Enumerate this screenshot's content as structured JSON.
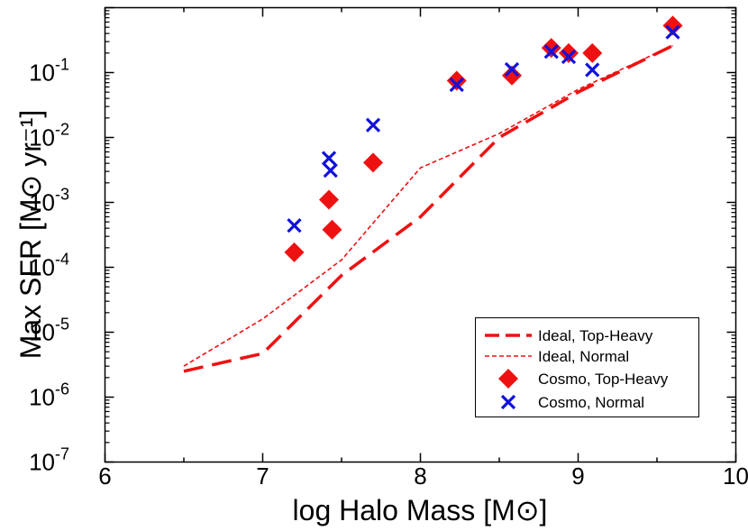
{
  "chart_data": {
    "type": "scatter",
    "xlabel": "log Halo Mass [M⊙]",
    "ylabel": "Max SFR [M⊙ yr⁻¹]",
    "xlim": [
      6,
      10
    ],
    "ylim_log10": [
      -7,
      0
    ],
    "y_scale": "log",
    "grid": false,
    "legend_position": "bottom-right",
    "x_tick_labels": [
      "6",
      "7",
      "8",
      "9",
      "10"
    ],
    "y_tick_labels": [
      {
        "base": "10",
        "exp": "-7"
      },
      {
        "base": "10",
        "exp": "-6"
      },
      {
        "base": "10",
        "exp": "-5"
      },
      {
        "base": "10",
        "exp": "-4"
      },
      {
        "base": "10",
        "exp": "-3"
      },
      {
        "base": "10",
        "exp": "-2"
      },
      {
        "base": "10",
        "exp": "-1"
      }
    ],
    "series": [
      {
        "name": "Ideal, Top-Heavy",
        "kind": "line",
        "style": "long-dash",
        "color": "#ee1111",
        "points": [
          [
            6.5,
            2.5e-06
          ],
          [
            7.0,
            4.7e-06
          ],
          [
            7.5,
            7.5e-05
          ],
          [
            8.0,
            0.0006
          ],
          [
            8.5,
            0.01
          ],
          [
            9.0,
            0.05
          ],
          [
            9.6,
            0.26
          ]
        ]
      },
      {
        "name": "Ideal, Normal",
        "kind": "line",
        "style": "short-dash",
        "color": "#ee1111",
        "points": [
          [
            6.5,
            3e-06
          ],
          [
            7.0,
            1.6e-05
          ],
          [
            7.5,
            0.00013
          ],
          [
            8.0,
            0.0034
          ],
          [
            8.5,
            0.0115
          ],
          [
            9.0,
            0.055
          ],
          [
            9.6,
            0.26
          ]
        ]
      },
      {
        "name": "Cosmo, Top-Heavy",
        "kind": "scatter",
        "marker": "diamond",
        "color": "#ee1111",
        "points": [
          [
            7.2,
            0.00017
          ],
          [
            7.42,
            0.0011
          ],
          [
            7.44,
            0.00038
          ],
          [
            7.7,
            0.0041
          ],
          [
            8.23,
            0.075
          ],
          [
            8.58,
            0.09
          ],
          [
            8.83,
            0.24
          ],
          [
            8.94,
            0.2
          ],
          [
            9.09,
            0.2
          ],
          [
            9.6,
            0.53
          ]
        ]
      },
      {
        "name": "Cosmo, Normal",
        "kind": "scatter",
        "marker": "x",
        "color": "#1111dd",
        "points": [
          [
            7.2,
            0.00044
          ],
          [
            7.42,
            0.0048
          ],
          [
            7.43,
            0.0031
          ],
          [
            7.7,
            0.0155
          ],
          [
            8.23,
            0.065
          ],
          [
            8.58,
            0.112
          ],
          [
            8.83,
            0.21
          ],
          [
            8.94,
            0.175
          ],
          [
            9.09,
            0.11
          ],
          [
            9.6,
            0.42
          ]
        ]
      }
    ]
  }
}
